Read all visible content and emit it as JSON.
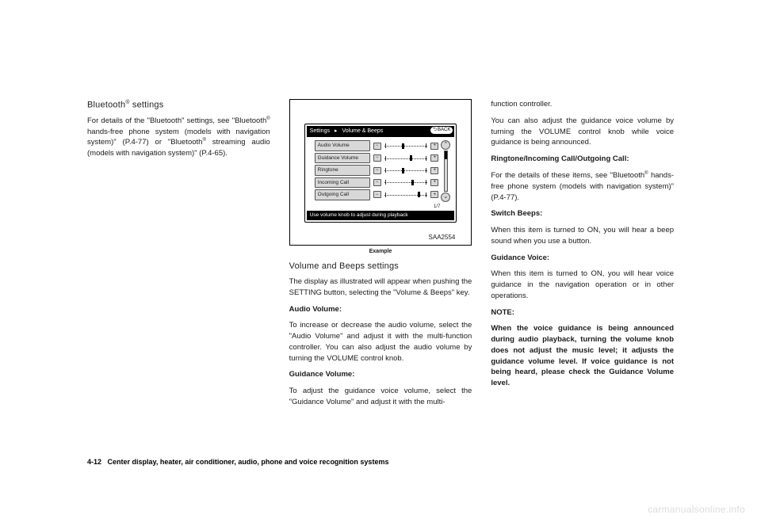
{
  "col1": {
    "heading": "Bluetooth",
    "heading_sup": "®",
    "heading_tail": " settings",
    "p1a": "For details of the \"Bluetooth\" settings, see \"Bluetooth",
    "p1sup": "®",
    "p1b": " hands-free phone system (models with navigation system)\" (P.4-77) or \"Bluetooth",
    "p1sup2": "®",
    "p1c": " streaming audio (models with navigation system)\" (P.4-65)."
  },
  "figure": {
    "breadcrumb_a": "Settings",
    "breadcrumb_b": "Volume & Beeps",
    "back": "BACK",
    "rows": [
      {
        "label": "Audio Volume",
        "thumb": 40
      },
      {
        "label": "Guidance Volume",
        "thumb": 60
      },
      {
        "label": "Ringtone",
        "thumb": 40
      },
      {
        "label": "Incoming Call",
        "thumb": 62
      },
      {
        "label": "Outgoing Call",
        "thumb": 78
      }
    ],
    "counter": "1/7",
    "footer": "Use volume knob to adjust during playback",
    "code": "SAA2554",
    "caption": "Example"
  },
  "col2": {
    "heading": "Volume and Beeps settings",
    "p1": "The display as illustrated will appear when pushing the SETTING button, selecting the \"Volume & Beeps\" key.",
    "h_audio": "Audio Volume:",
    "p_audio": "To increase or decrease the audio volume, select the \"Audio Volume\" and adjust it with the multi-function controller. You can also adjust the audio volume by turning the VOLUME control knob.",
    "h_guidance": "Guidance Volume:",
    "p_guidance": "To adjust the guidance voice volume, select the \"Guidance Volume\" and adjust it with the multi-"
  },
  "col3": {
    "p_cont": "function controller.",
    "p_cont2": "You can also adjust the guidance voice volume by turning the VOLUME control knob while voice guidance is being announced.",
    "h_ring": "Ringtone/Incoming Call/Outgoing Call:",
    "p_ring_a": "For the details of these items, see \"Bluetooth",
    "p_ring_sup": "®",
    "p_ring_b": " hands-free phone system (models with navigation system)\" (P.4-77).",
    "h_switch": "Switch Beeps:",
    "p_switch": "When this item is turned to ON, you will hear a beep sound when you use a button.",
    "h_gv": "Guidance Voice:",
    "p_gv": "When this item is turned to ON, you will hear voice guidance in the navigation operation or in other operations.",
    "h_note": "NOTE:",
    "p_note": "When the voice guidance is being announced during audio playback, turning the volume knob does not adjust the music level; it adjusts the guidance volume level. If voice guidance is not being heard, please check the Guidance Volume level."
  },
  "footer": {
    "pagenum": "4-12",
    "title": "Center display, heater, air conditioner, audio, phone and voice recognition systems"
  },
  "watermark": "carmanualsonline.info"
}
